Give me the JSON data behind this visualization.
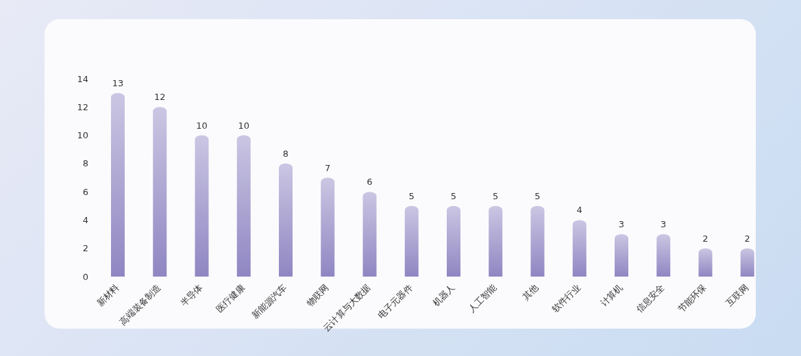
{
  "chart_data": {
    "type": "bar",
    "categories": [
      "新材料",
      "高端装备制造",
      "半导体",
      "医疗健康",
      "新能源汽车",
      "物联网",
      "云计算与大数据",
      "电子元器件",
      "机器人",
      "人工智能",
      "其他",
      "软件行业",
      "计算机",
      "信息安全",
      "节能环保",
      "互联网"
    ],
    "values": [
      13,
      12,
      10,
      10,
      8,
      7,
      6,
      5,
      5,
      5,
      5,
      4,
      3,
      3,
      2,
      2
    ],
    "color": "#8f86c2",
    "ylim": [
      0,
      14
    ],
    "yticks": [
      0,
      2,
      4,
      6,
      8,
      10,
      12,
      14
    ],
    "grid": false,
    "data_labels": true
  }
}
